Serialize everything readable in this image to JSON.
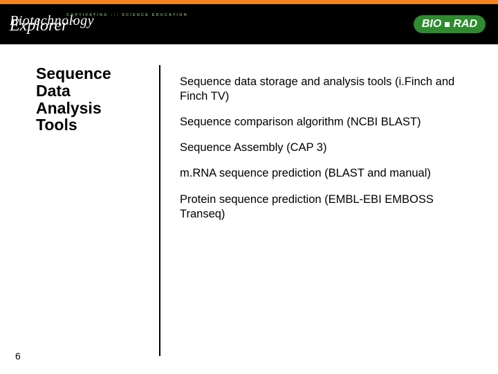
{
  "accent_color": "#f58220",
  "header_bg": "#000000",
  "brand": {
    "line1": "Biotechnology",
    "tagline": "CAPTIVATING   :::   SCIENCE EDUCATION",
    "line2": "Explorer",
    "tm": "™"
  },
  "biorad": {
    "text": "BIO RAD"
  },
  "heading": {
    "l1": "Sequence",
    "l2": "Data",
    "l3": "Analysis",
    "l4": "Tools"
  },
  "items": [
    "Sequence data storage and analysis tools (i.Finch and Finch TV)",
    "Sequence comparison algorithm (NCBI BLAST)",
    "Sequence Assembly (CAP 3)",
    "m.RNA sequence prediction (BLAST and manual)",
    "Protein sequence prediction (EMBL-EBI EMBOSS Transeq)"
  ],
  "page_number": "6"
}
